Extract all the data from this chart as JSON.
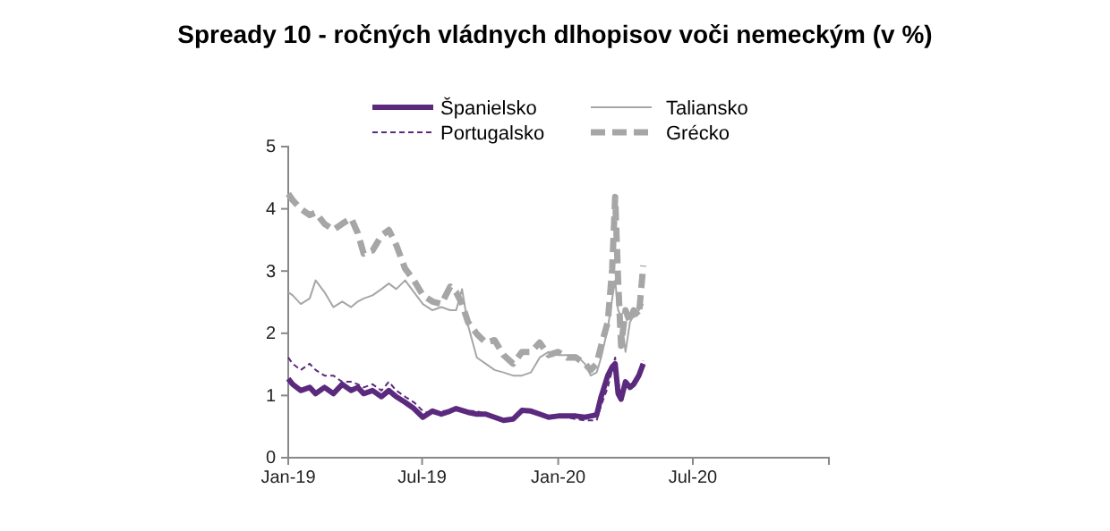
{
  "chart_data": {
    "type": "line",
    "title": "Spready 10 - ročných vládnych dlhopisov voči nemeckým (v %)",
    "x": [
      "2019-01-01",
      "2019-01-07",
      "2019-01-18",
      "2019-01-30",
      "2019-02-07",
      "2019-02-19",
      "2019-03-03",
      "2019-03-15",
      "2019-03-27",
      "2019-04-05",
      "2019-04-13",
      "2019-04-25",
      "2019-05-07",
      "2019-05-17",
      "2019-05-27",
      "2019-06-08",
      "2019-06-20",
      "2019-07-02",
      "2019-07-15",
      "2019-07-27",
      "2019-08-08",
      "2019-08-16",
      "2019-08-24",
      "2019-09-01",
      "2019-09-13",
      "2019-09-25",
      "2019-10-07",
      "2019-10-19",
      "2019-11-01",
      "2019-11-13",
      "2019-11-25",
      "2019-12-07",
      "2019-12-19",
      "2020-01-01",
      "2020-01-13",
      "2020-01-25",
      "2020-02-06",
      "2020-02-14",
      "2020-02-22",
      "2020-02-28",
      "2020-03-08",
      "2020-03-14",
      "2020-03-18",
      "2020-03-22",
      "2020-03-26",
      "2020-04-01",
      "2020-04-07",
      "2020-04-12",
      "2020-04-19",
      "2020-04-25"
    ],
    "series": [
      {
        "name": "Španielsko",
        "color": "#5b2a7e",
        "line_style": "solid",
        "values": [
          1.27,
          1.18,
          1.08,
          1.13,
          1.03,
          1.13,
          1.03,
          1.18,
          1.08,
          1.13,
          1.03,
          1.08,
          0.98,
          1.08,
          0.98,
          0.89,
          0.79,
          0.65,
          0.75,
          0.7,
          0.75,
          0.79,
          0.76,
          0.73,
          0.7,
          0.7,
          0.65,
          0.6,
          0.62,
          0.76,
          0.75,
          0.7,
          0.65,
          0.67,
          0.67,
          0.67,
          0.65,
          0.67,
          0.69,
          0.98,
          1.32,
          1.46,
          1.51,
          1.03,
          0.94,
          1.22,
          1.13,
          1.18,
          1.32,
          1.51
        ]
      },
      {
        "name": "Taliansko",
        "color": "#a6a6a6",
        "line_style": "solid",
        "values": [
          2.66,
          2.61,
          2.47,
          2.56,
          2.85,
          2.66,
          2.42,
          2.51,
          2.42,
          2.51,
          2.56,
          2.61,
          2.71,
          2.8,
          2.71,
          2.85,
          2.66,
          2.47,
          2.37,
          2.42,
          2.37,
          2.37,
          2.71,
          2.13,
          1.61,
          1.51,
          1.41,
          1.37,
          1.32,
          1.32,
          1.37,
          1.61,
          1.7,
          1.65,
          1.65,
          1.65,
          1.51,
          1.32,
          1.37,
          1.61,
          2.08,
          2.56,
          2.85,
          2.37,
          2.28,
          1.7,
          2.18,
          2.28,
          2.37,
          2.47
        ]
      },
      {
        "name": "Portugalsko",
        "color": "#5b2a7e",
        "line_style": "dashed",
        "values": [
          1.61,
          1.51,
          1.41,
          1.51,
          1.41,
          1.32,
          1.32,
          1.22,
          1.22,
          1.18,
          1.13,
          1.18,
          1.08,
          1.22,
          1.08,
          0.98,
          0.89,
          0.75,
          0.7,
          0.75,
          0.75,
          0.79,
          0.76,
          0.75,
          0.75,
          0.7,
          0.65,
          0.6,
          0.63,
          0.76,
          0.75,
          0.7,
          0.65,
          0.65,
          0.65,
          0.62,
          0.6,
          0.6,
          0.6,
          0.84,
          1.13,
          1.41,
          1.61,
          1.22,
          1.03,
          1.22,
          1.13,
          1.22,
          1.32,
          1.56
        ]
      },
      {
        "name": "Grécko",
        "color": "#a6a6a6",
        "line_style": "dashed",
        "values": [
          4.24,
          4.14,
          4.0,
          3.9,
          3.94,
          3.76,
          3.66,
          3.76,
          3.85,
          3.61,
          3.28,
          3.33,
          3.57,
          3.66,
          3.42,
          3.04,
          2.85,
          2.61,
          2.51,
          2.47,
          2.75,
          2.66,
          2.47,
          2.18,
          1.99,
          1.85,
          1.89,
          1.65,
          1.51,
          1.7,
          1.7,
          1.85,
          1.65,
          1.7,
          1.61,
          1.61,
          1.51,
          1.41,
          1.51,
          1.8,
          2.18,
          3.04,
          4.19,
          2.85,
          1.8,
          2.37,
          2.18,
          2.37,
          2.28,
          3.09
        ]
      }
    ],
    "xlim": [
      "2019-01-01",
      "2021-01-01"
    ],
    "xticks": [
      {
        "value": "2019-01-01",
        "label": "Jan-19"
      },
      {
        "value": "2019-07-01",
        "label": "Jul-19"
      },
      {
        "value": "2020-01-01",
        "label": "Jan-20"
      },
      {
        "value": "2020-07-01",
        "label": "Jul-20"
      }
    ],
    "ylim": [
      0,
      5
    ],
    "yticks": [
      0,
      1,
      2,
      3,
      4,
      5
    ],
    "legend": "top",
    "grid": false
  }
}
